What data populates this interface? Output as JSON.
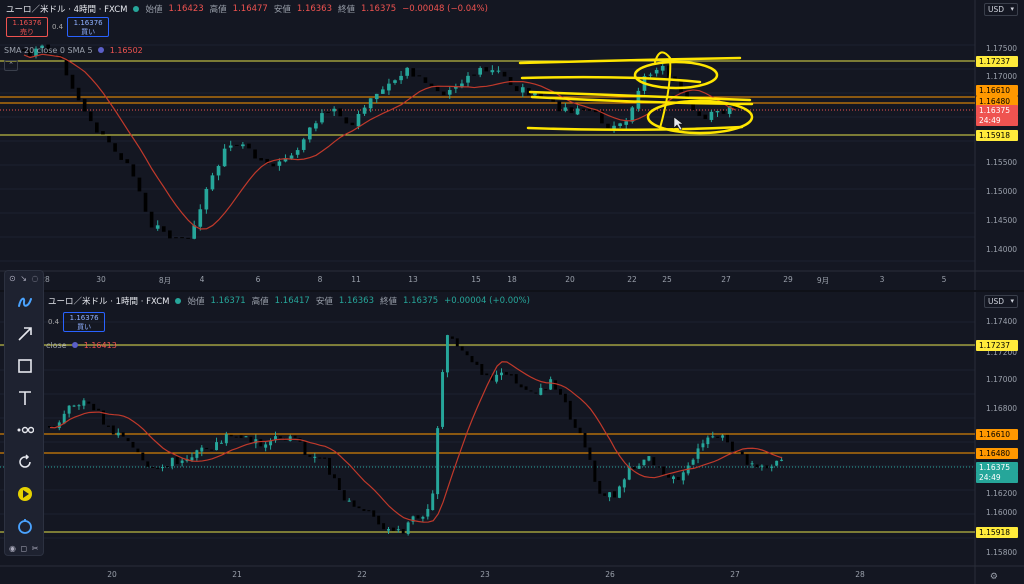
{
  "top": {
    "header": {
      "symbol": "ユーロ／米ドル · 4時間 · FXCM",
      "open_label": "始値",
      "open": "1.16423",
      "high_label": "高値",
      "high": "1.16477",
      "low_label": "安値",
      "low": "1.16363",
      "close_label": "終値",
      "close": "1.16375",
      "change": "−0.00048 (−0.04%)"
    },
    "trade": {
      "sell_price": "1.16376",
      "sell_label": "売り",
      "spread": "0.4",
      "buy_price": "1.16376",
      "buy_label": "買い"
    },
    "sma": {
      "text": "SMA 20 close 0 SMA 5",
      "value": "1.16502"
    },
    "currency": "USD",
    "y_ticks": [
      "1.17500",
      "1.17000",
      "1.16500",
      "1.16000",
      "1.15500",
      "1.15000",
      "1.14500",
      "1.14000"
    ],
    "price_labels": [
      {
        "text": "1.17237",
        "bg": "#ffeb3b",
        "fg": "#000000"
      },
      {
        "text": "1.16610",
        "bg": "#ff9800",
        "fg": "#000000"
      },
      {
        "text": "1.16480",
        "bg": "#ff9800",
        "fg": "#000000"
      },
      {
        "text": "1.16375",
        "bg": "#ef5350",
        "fg": "#ffffff"
      },
      {
        "text": "24:49",
        "bg": "#ef5350",
        "fg": "#ffffff"
      },
      {
        "text": "1.15918",
        "bg": "#ffeb3b",
        "fg": "#000000"
      }
    ],
    "x_ticks": [
      "28",
      "30",
      "8月",
      "4",
      "6",
      "8",
      "11",
      "13",
      "15",
      "18",
      "20",
      "22",
      "25",
      "27",
      "29",
      "9月",
      "3",
      "5"
    ]
  },
  "bottom": {
    "header": {
      "symbol": "ユーロ／米ドル · 1時間 · FXCM",
      "open_label": "始値",
      "open": "1.16371",
      "high_label": "高値",
      "high": "1.16417",
      "low_label": "安値",
      "low": "1.16363",
      "close_label": "終値",
      "close": "1.16375",
      "change": "+0.00004 (+0.00%)"
    },
    "trade": {
      "sell_price": "1.16376",
      "sell_label": "売り",
      "spread": "0.4",
      "buy_price": "1.16376",
      "buy_label": "買い"
    },
    "sma": {
      "text": "close",
      "value": "1.16413"
    },
    "currency": "USD",
    "y_ticks": [
      "1.17400",
      "1.17200",
      "1.17000",
      "1.16800",
      "1.16600",
      "1.16400",
      "1.16200",
      "1.16000",
      "1.15800"
    ],
    "price_labels": [
      {
        "text": "1.17237",
        "bg": "#ffeb3b",
        "fg": "#000000"
      },
      {
        "text": "1.16610",
        "bg": "#ff9800",
        "fg": "#000000"
      },
      {
        "text": "1.16480",
        "bg": "#ff9800",
        "fg": "#000000"
      },
      {
        "text": "1.16375",
        "bg": "#26a69a",
        "fg": "#ffffff"
      },
      {
        "text": "24:49",
        "bg": "#26a69a",
        "fg": "#ffffff"
      },
      {
        "text": "1.15918",
        "bg": "#ffeb3b",
        "fg": "#000000"
      }
    ],
    "x_ticks": [
      "20",
      "21",
      "22",
      "23",
      "26",
      "27",
      "28"
    ]
  },
  "toolbar": {
    "tools": [
      "cursor-icon",
      "freehand-icon",
      "arrow-icon",
      "rectangle-icon",
      "text-icon",
      "path-icon",
      "rotate-icon",
      "play-icon",
      "timer-icon"
    ]
  },
  "colors": {
    "up": "#26a69a",
    "down": "#ef5350",
    "sma": "#c0392b",
    "yellow_line": "#e5e04a",
    "orange_line": "#ff9800",
    "highlight": "#ffe600"
  }
}
